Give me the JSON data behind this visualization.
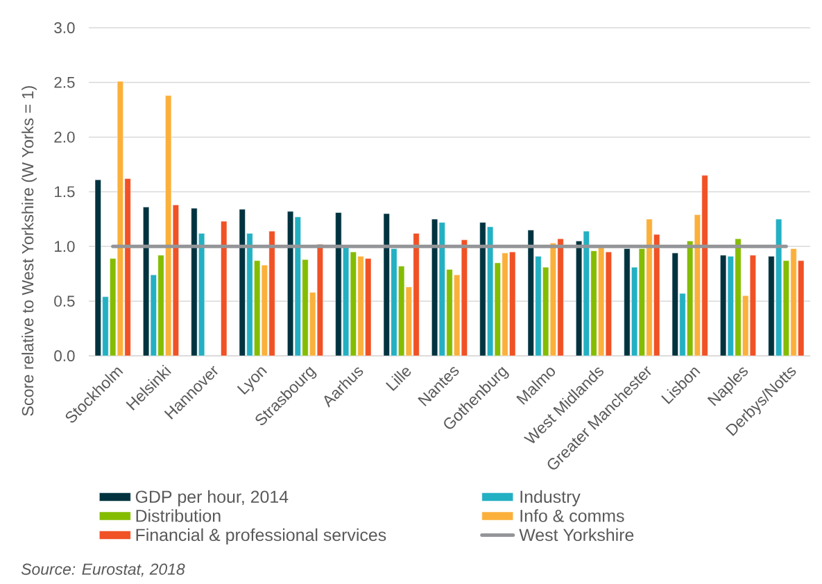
{
  "chart_data": {
    "type": "bar",
    "categories": [
      "Stockholm",
      "Helsinki",
      "Hannover",
      "Lyon",
      "Strasbourg",
      "Aarhus",
      "Lille",
      "Nantes",
      "Gothenburg",
      "Malmo",
      "West Midlands",
      "Greater Manchester",
      "Lisbon",
      "Naples",
      "Derbys/Notts"
    ],
    "series": [
      {
        "name": "GDP per hour, 2014",
        "color": "#00333f",
        "values": [
          1.61,
          1.36,
          1.35,
          1.34,
          1.32,
          1.31,
          1.3,
          1.25,
          1.22,
          1.15,
          1.05,
          0.98,
          0.94,
          0.92,
          0.91
        ]
      },
      {
        "name": "Industry",
        "color": "#23b0c3",
        "values": [
          0.54,
          0.74,
          1.12,
          1.12,
          1.27,
          0.99,
          0.98,
          1.22,
          1.18,
          0.91,
          1.14,
          0.81,
          0.57,
          0.91,
          1.25
        ]
      },
      {
        "name": "Distribution",
        "color": "#84bc00",
        "values": [
          0.89,
          0.92,
          null,
          0.87,
          0.88,
          0.95,
          0.82,
          0.79,
          0.85,
          0.81,
          0.96,
          0.98,
          1.05,
          1.07,
          0.87
        ]
      },
      {
        "name": "Info & comms",
        "color": "#fbb03b",
        "values": [
          2.51,
          2.38,
          null,
          0.83,
          0.58,
          0.91,
          0.63,
          0.74,
          0.94,
          1.03,
          0.99,
          1.25,
          1.29,
          0.55,
          0.98
        ]
      },
      {
        "name": "Financial & professional services",
        "color": "#f05125",
        "values": [
          1.62,
          1.38,
          1.23,
          1.14,
          1.02,
          0.89,
          1.12,
          1.06,
          0.95,
          1.07,
          0.95,
          1.11,
          1.65,
          0.92,
          0.87
        ]
      },
      {
        "name": "West Yorkshire",
        "type": "line",
        "color": "#939598",
        "values": [
          1,
          1,
          1,
          1,
          1,
          1,
          1,
          1,
          1,
          1,
          1,
          1,
          1,
          1,
          1
        ]
      }
    ],
    "ylabel": "Score relative to West Yorkshire (W Yorks = 1)",
    "ylim": [
      0,
      3
    ],
    "yticks": [
      {
        "value": 0,
        "label": "0.0"
      },
      {
        "value": 0.5,
        "label": "0.5"
      },
      {
        "value": 1,
        "label": "1.0"
      },
      {
        "value": 1.5,
        "label": "1.5"
      },
      {
        "value": 2,
        "label": "2.0"
      },
      {
        "value": 2.5,
        "label": "2.5"
      },
      {
        "value": 3,
        "label": "3.0"
      }
    ],
    "grid": "y",
    "legend": "bottom",
    "annotations": [
      "Source: Eurostat, 2018"
    ]
  }
}
